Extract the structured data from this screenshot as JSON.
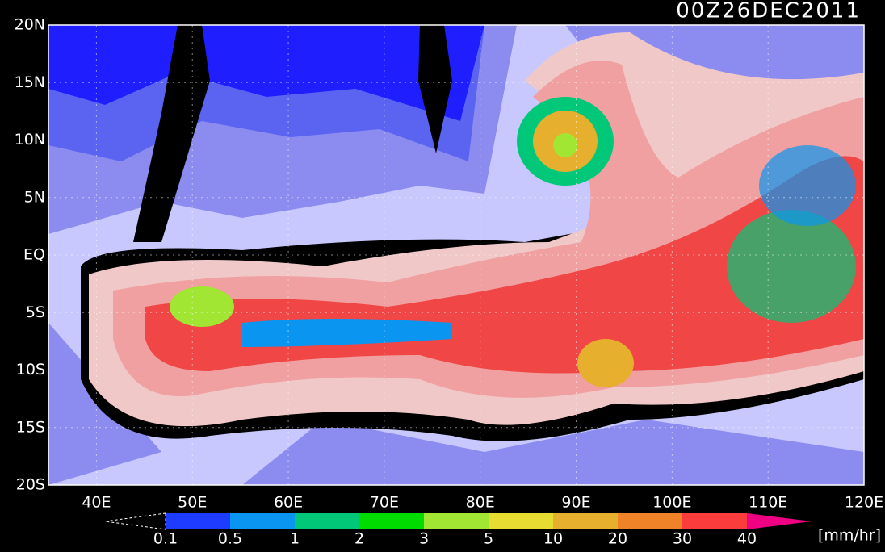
{
  "header": {
    "title": "00Z26DEC2011"
  },
  "map": {
    "lat_labels": [
      "20N",
      "15N",
      "10N",
      "5N",
      "EQ",
      "5S",
      "10S",
      "15S",
      "20S"
    ],
    "lon_labels": [
      "40E",
      "50E",
      "60E",
      "70E",
      "80E",
      "90E",
      "100E",
      "110E",
      "120E"
    ]
  },
  "colorbar": {
    "levels": [
      0.1,
      0.5,
      1,
      2,
      3,
      5,
      10,
      20,
      30,
      40
    ],
    "colors": [
      "#1e3cff",
      "#0a96f0",
      "#00c878",
      "#00dc00",
      "#a0e632",
      "#e6dc32",
      "#e6af2d",
      "#f08228",
      "#fa3c3c",
      "#f00082"
    ],
    "unit": "[mm/hr]"
  }
}
